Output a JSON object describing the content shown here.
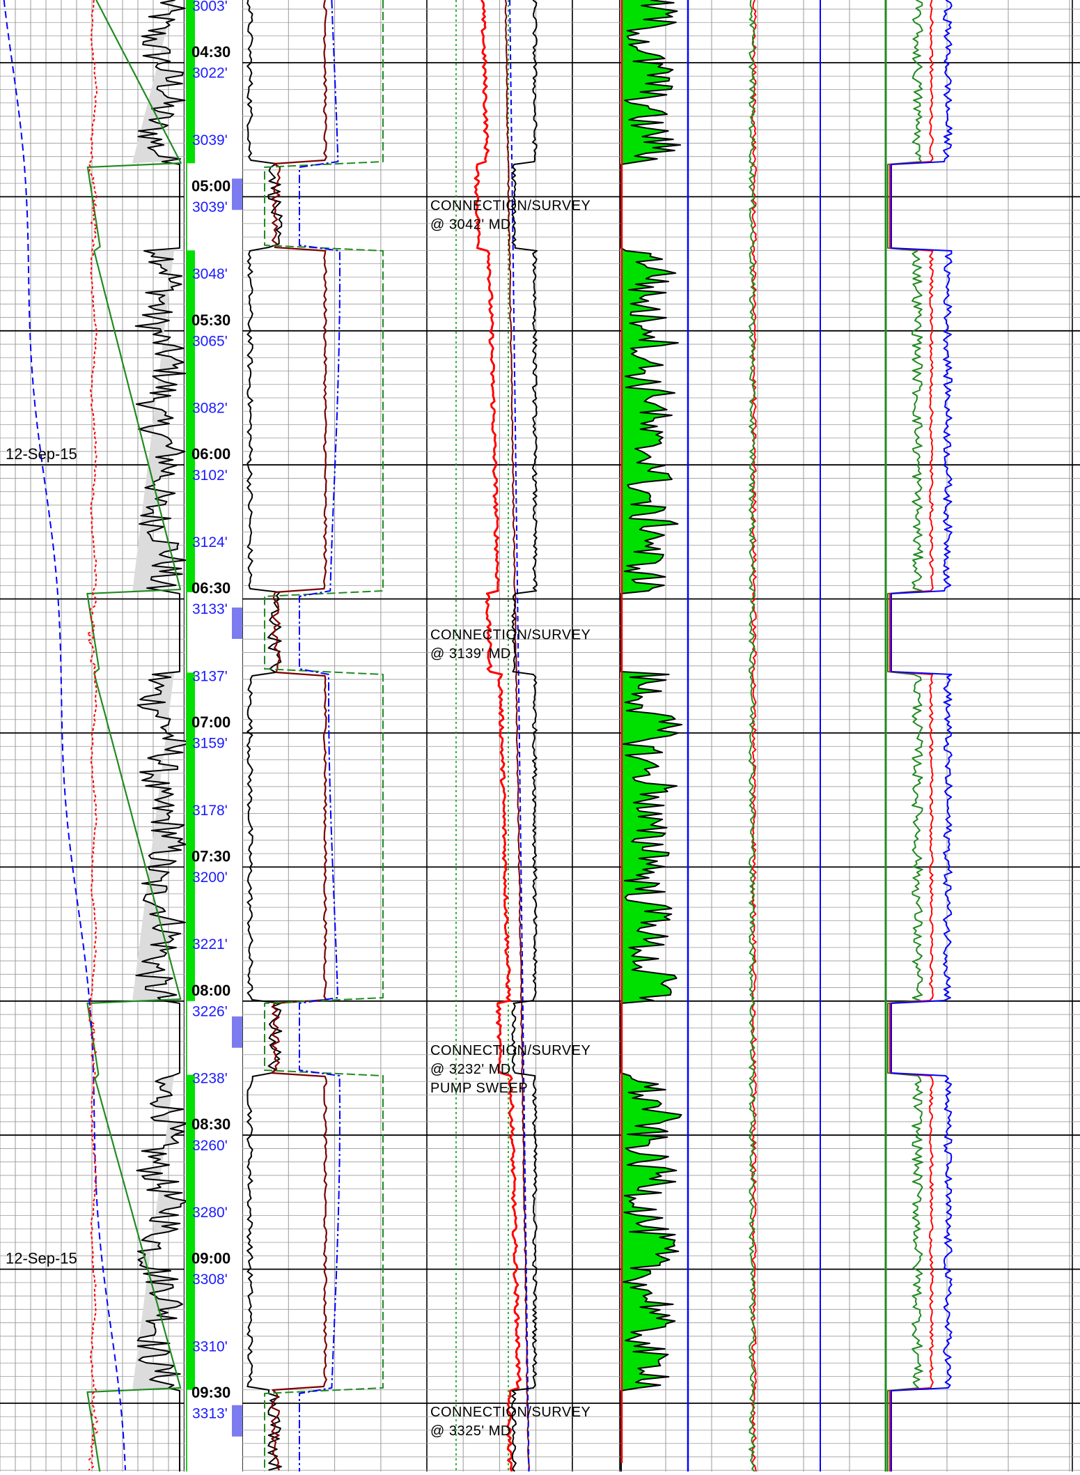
{
  "chart_data": {
    "type": "line",
    "title": "",
    "xlabel": "",
    "ylabel": "",
    "grid": true,
    "colors": {
      "grid": "#9a9a9a",
      "major_grid": "#000000",
      "rop": "#000000",
      "rop_fill": "#dcdcdc",
      "depth_track": "#00e000",
      "connection_marker": "#7c7cf0",
      "red": "#ff0000",
      "blue": "#0000ff",
      "green": "#1f8a1f",
      "maroon": "#7a0000",
      "gas_fill": "#00e000"
    },
    "time_labels": [
      {
        "t": 0,
        "label": "04:30"
      },
      {
        "t": 1,
        "label": "05:00"
      },
      {
        "t": 2,
        "label": "05:30"
      },
      {
        "t": 3,
        "label": "06:00"
      },
      {
        "t": 4,
        "label": "06:30"
      },
      {
        "t": 5,
        "label": "07:00"
      },
      {
        "t": 6,
        "label": "07:30"
      },
      {
        "t": 7,
        "label": "08:00"
      },
      {
        "t": 8,
        "label": "08:30"
      },
      {
        "t": 9,
        "label": "09:00"
      },
      {
        "t": 10,
        "label": "09:30"
      }
    ],
    "depth_labels": [
      {
        "t": -0.45,
        "label": "3003'"
      },
      {
        "t": 0.05,
        "label": "3022'"
      },
      {
        "t": 0.55,
        "label": "3039'"
      },
      {
        "t": 1.05,
        "label": "3039'"
      },
      {
        "t": 1.55,
        "label": "3048'"
      },
      {
        "t": 2.05,
        "label": "3065'"
      },
      {
        "t": 2.55,
        "label": "3082'"
      },
      {
        "t": 3.05,
        "label": "3102'"
      },
      {
        "t": 3.55,
        "label": "3124'"
      },
      {
        "t": 4.05,
        "label": "3133'"
      },
      {
        "t": 4.55,
        "label": "3137'"
      },
      {
        "t": 5.05,
        "label": "3159'"
      },
      {
        "t": 5.55,
        "label": "3178'"
      },
      {
        "t": 6.05,
        "label": "3200'"
      },
      {
        "t": 6.55,
        "label": "3221'"
      },
      {
        "t": 7.05,
        "label": "3226'"
      },
      {
        "t": 7.55,
        "label": "3238'"
      },
      {
        "t": 8.05,
        "label": "3260'"
      },
      {
        "t": 8.55,
        "label": "3280'"
      },
      {
        "t": 9.05,
        "label": "3308'"
      },
      {
        "t": 9.55,
        "label": "3310'"
      },
      {
        "t": 10.05,
        "label": "3313'"
      }
    ],
    "date_labels": [
      {
        "t": 3,
        "label": "12-Sep-15"
      },
      {
        "t": 9,
        "label": "12-Sep-15"
      }
    ],
    "remarks": [
      {
        "t": 1.1,
        "lines": [
          "CONNECTION/SURVEY",
          "@ 3042' MD"
        ]
      },
      {
        "t": 4.3,
        "lines": [
          "CONNECTION/SURVEY",
          "@ 3139' MD"
        ]
      },
      {
        "t": 7.4,
        "lines": [
          "CONNECTION/SURVEY",
          "@ 3232' MD",
          "PUMP SWEEP"
        ]
      },
      {
        "t": 10.1,
        "lines": [
          "CONNECTION/SURVEY",
          "@ 3325' MD"
        ]
      }
    ],
    "drilling_intervals": [
      [
        -0.5,
        0.75
      ],
      [
        1.4,
        3.95
      ],
      [
        4.55,
        7.0
      ],
      [
        7.55,
        9.9
      ],
      [
        10.7,
        11.0
      ]
    ],
    "connection_intervals": [
      [
        0.75,
        1.4
      ],
      [
        3.95,
        4.55
      ],
      [
        7.0,
        7.55
      ],
      [
        9.9,
        10.7
      ]
    ]
  }
}
